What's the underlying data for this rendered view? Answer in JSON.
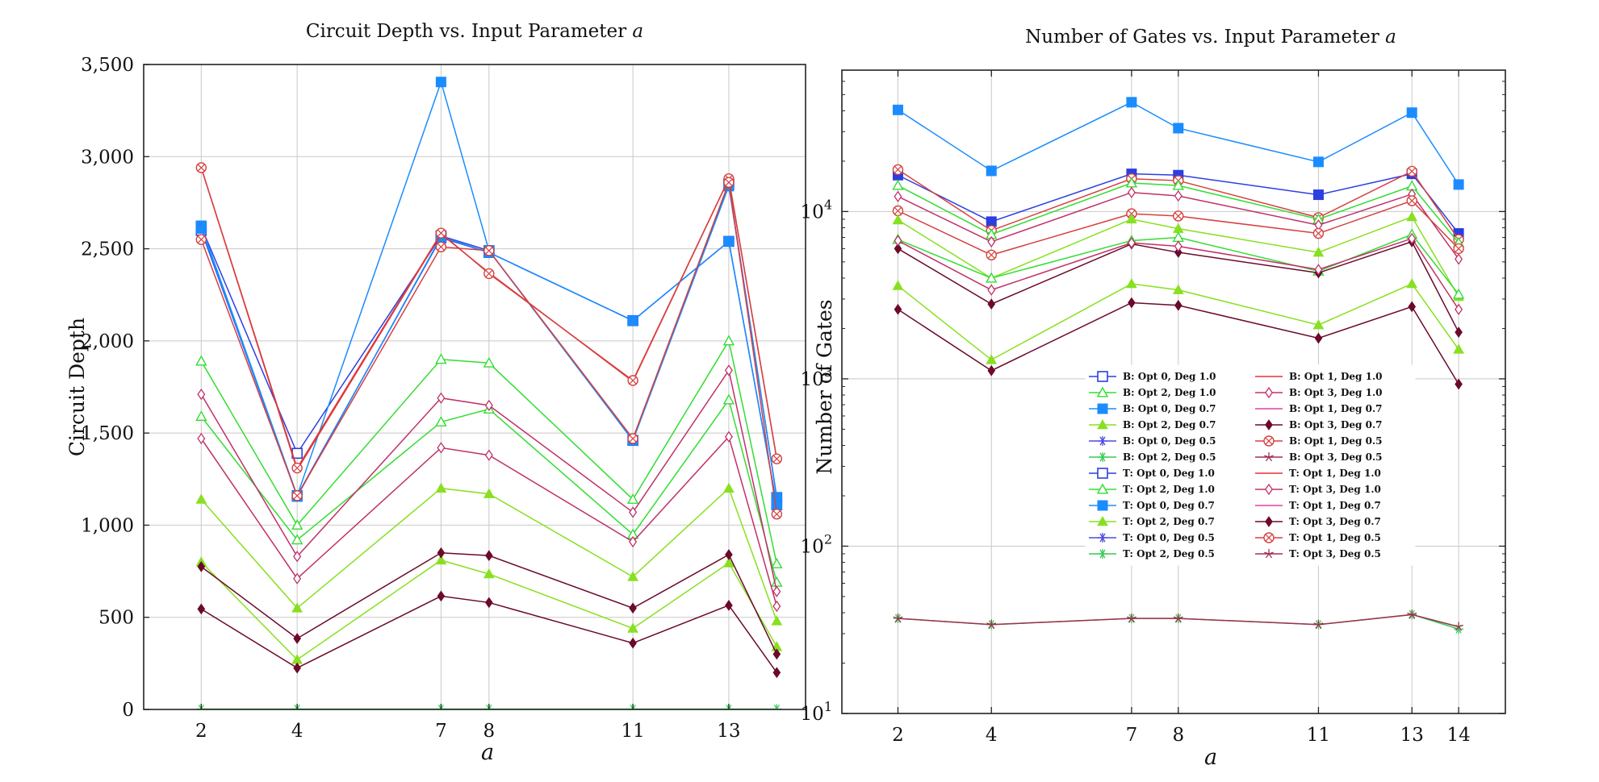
{
  "chart_data": [
    {
      "type": "line",
      "title": "Circuit Depth vs. Input Parameter a",
      "title_prefix": "Circuit Depth vs. Input Parameter ",
      "title_var": "a",
      "xlabel": "a",
      "ylabel": "Circuit Depth",
      "x": [
        2,
        4,
        7,
        8,
        11,
        13,
        14
      ],
      "xticks": [
        "2",
        "4",
        "7",
        "8",
        "11",
        "13"
      ],
      "yticks": [
        "0",
        "500",
        "1,000",
        "1,500",
        "2,000",
        "2,500",
        "3,000",
        "3,500"
      ],
      "xlim": [
        0.8,
        14.6
      ],
      "ylim": [
        0,
        3500
      ],
      "yscale": "linear",
      "grid": true,
      "series": [
        {
          "name": "B: Opt 0, Deg 1.0",
          "color": "#2b3fe0",
          "marker": "square-open",
          "values": [
            2620,
            1390,
            2570,
            2490,
            1460,
            2850,
            1150
          ]
        },
        {
          "name": "T: Opt 0, Deg 1.0",
          "color": "#2b3fe0",
          "marker": "square-open",
          "values": [
            2600,
            1160,
            2560,
            2480,
            2110,
            2540,
            1110
          ]
        },
        {
          "name": "B: Opt 0, Deg 0.7",
          "color": "#1a8cff",
          "marker": "square-filled",
          "values": [
            2625,
            1160,
            3405,
            2490,
            1460,
            2840,
            1150
          ]
        },
        {
          "name": "T: Opt 0, Deg 0.7",
          "color": "#1a8cff",
          "marker": "square-filled",
          "values": [
            2610,
            1155,
            2565,
            2480,
            2110,
            2540,
            1110
          ]
        },
        {
          "name": "B: Opt 1, Deg 1.0",
          "color": "#e63030",
          "marker": "none",
          "values": [
            2940,
            1300,
            2580,
            2370,
            1780,
            2880,
            1360
          ]
        },
        {
          "name": "B: Opt 1, Deg 0.5",
          "color": "#d64040",
          "marker": "circle-x",
          "values": [
            2940,
            1310,
            2585,
            2365,
            1785,
            2880,
            1360
          ]
        },
        {
          "name": "T: Opt 1, Deg 0.5",
          "color": "#d64040",
          "marker": "circle-x",
          "values": [
            2550,
            1160,
            2510,
            2490,
            1470,
            2860,
            1060
          ]
        },
        {
          "name": "T: Opt 2, Deg 1.0",
          "color": "#33dd33",
          "marker": "triangle-open",
          "values": [
            1890,
            1000,
            1900,
            1880,
            1140,
            2000,
            790
          ]
        },
        {
          "name": "B: Opt 2, Deg 1.0",
          "color": "#33dd33",
          "marker": "triangle-open",
          "values": [
            1590,
            920,
            1560,
            1630,
            950,
            1680,
            690
          ]
        },
        {
          "name": "B: Opt 3, Deg 1.0",
          "color": "#c0306a",
          "marker": "diamond-open",
          "values": [
            1710,
            830,
            1690,
            1650,
            1070,
            1840,
            640
          ]
        },
        {
          "name": "T: Opt 3, Deg 1.0",
          "color": "#c0306a",
          "marker": "diamond-open",
          "values": [
            1470,
            710,
            1420,
            1380,
            910,
            1480,
            560
          ]
        },
        {
          "name": "B: Opt 2, Deg 0.7",
          "color": "#88e020",
          "marker": "triangle-filled",
          "values": [
            1140,
            550,
            1200,
            1170,
            720,
            1200,
            480
          ]
        },
        {
          "name": "T: Opt 2, Deg 0.7",
          "color": "#88e020",
          "marker": "triangle-filled",
          "values": [
            800,
            270,
            810,
            735,
            440,
            795,
            340
          ]
        },
        {
          "name": "B: Opt 3, Deg 0.7",
          "color": "#6b0a2a",
          "marker": "diamond-filled",
          "values": [
            775,
            385,
            850,
            835,
            550,
            840,
            300
          ]
        },
        {
          "name": "T: Opt 3, Deg 0.7",
          "color": "#6b0a2a",
          "marker": "diamond-filled",
          "values": [
            545,
            225,
            615,
            580,
            360,
            565,
            200
          ]
        },
        {
          "name": "B: Opt 2, Deg 0.5",
          "color": "#33cc55",
          "marker": "asterisk",
          "values": [
            2,
            2,
            2,
            2,
            2,
            2,
            2
          ]
        }
      ]
    },
    {
      "type": "line",
      "title": "Number of Gates vs. Input Parameter a",
      "title_prefix": "Number of Gates vs. Input Parameter ",
      "title_var": "a",
      "xlabel": "a",
      "ylabel": "Number of Gates",
      "x": [
        2,
        4,
        7,
        8,
        11,
        13,
        14
      ],
      "xticks": [
        "2",
        "4",
        "7",
        "8",
        "11",
        "13",
        "14"
      ],
      "ylim": [
        10,
        70000
      ],
      "yscale": "log",
      "xlim": [
        0.8,
        15
      ],
      "grid": true,
      "legend_position": "center-lower",
      "legend": [
        {
          "label": "B: Opt 0, Deg 1.0",
          "color": "#2b3fe0",
          "marker": "square-open"
        },
        {
          "label": "B: Opt 1, Deg 1.0",
          "color": "#e63030",
          "marker": "none"
        },
        {
          "label": "B: Opt 2, Deg 1.0",
          "color": "#33dd33",
          "marker": "triangle-open"
        },
        {
          "label": "B: Opt 3, Deg 1.0",
          "color": "#c0306a",
          "marker": "diamond-open"
        },
        {
          "label": "B: Opt 0, Deg 0.7",
          "color": "#1a8cff",
          "marker": "square-filled"
        },
        {
          "label": "B: Opt 1, Deg 0.7",
          "color": "#e040a0",
          "marker": "none"
        },
        {
          "label": "B: Opt 2, Deg 0.7",
          "color": "#88e020",
          "marker": "triangle-filled"
        },
        {
          "label": "B: Opt 3, Deg 0.7",
          "color": "#6b0a2a",
          "marker": "diamond-filled"
        },
        {
          "label": "B: Opt 0, Deg 0.5",
          "color": "#4b4be0",
          "marker": "asterisk"
        },
        {
          "label": "B: Opt 1, Deg 0.5",
          "color": "#d64040",
          "marker": "circle-x"
        },
        {
          "label": "B: Opt 2, Deg 0.5",
          "color": "#33cc55",
          "marker": "asterisk"
        },
        {
          "label": "B: Opt 3, Deg 0.5",
          "color": "#a03050",
          "marker": "star"
        },
        {
          "label": "T: Opt 0, Deg 1.0",
          "color": "#2b3fe0",
          "marker": "square-open"
        },
        {
          "label": "T: Opt 1, Deg 1.0",
          "color": "#e63030",
          "marker": "none"
        },
        {
          "label": "T: Opt 2, Deg 1.0",
          "color": "#33dd33",
          "marker": "triangle-open"
        },
        {
          "label": "T: Opt 3, Deg 1.0",
          "color": "#c0306a",
          "marker": "diamond-open"
        },
        {
          "label": "T: Opt 0, Deg 0.7",
          "color": "#1a8cff",
          "marker": "square-filled"
        },
        {
          "label": "T: Opt 1, Deg 0.7",
          "color": "#e040a0",
          "marker": "none"
        },
        {
          "label": "T: Opt 2, Deg 0.7",
          "color": "#88e020",
          "marker": "triangle-filled"
        },
        {
          "label": "T: Opt 3, Deg 0.7",
          "color": "#6b0a2a",
          "marker": "diamond-filled"
        },
        {
          "label": "T: Opt 0, Deg 0.5",
          "color": "#4b4be0",
          "marker": "asterisk"
        },
        {
          "label": "T: Opt 1, Deg 0.5",
          "color": "#d64040",
          "marker": "circle-x"
        },
        {
          "label": "T: Opt 2, Deg 0.5",
          "color": "#33cc55",
          "marker": "asterisk"
        },
        {
          "label": "T: Opt 3, Deg 0.5",
          "color": "#a03050",
          "marker": "star"
        }
      ],
      "series": [
        {
          "name": "B: Opt 0, Deg 0.7",
          "color": "#1a8cff",
          "marker": "square-filled",
          "values": [
            40500,
            17500,
            45000,
            31500,
            19800,
            39000,
            14500
          ]
        },
        {
          "name": "T: Opt 0, Deg 1.0",
          "color": "#2b3fe0",
          "marker": "square-filled",
          "values": [
            16500,
            8700,
            16800,
            16500,
            12600,
            16800,
            7400
          ]
        },
        {
          "name": "B: Opt 1, Deg 1.0",
          "color": "#d64040",
          "marker": "circle-x",
          "values": [
            17800,
            7700,
            15700,
            15300,
            9200,
            17400,
            6800
          ]
        },
        {
          "name": "B: Opt 2, Deg 1.0",
          "color": "#33dd33",
          "marker": "triangle-open",
          "values": [
            14300,
            7300,
            14800,
            14300,
            9000,
            14200,
            6500
          ]
        },
        {
          "name": "B: Opt 3, Deg 1.0",
          "color": "#c0306a",
          "marker": "diamond-open",
          "values": [
            12300,
            6600,
            13000,
            12400,
            8300,
            12700,
            5200
          ]
        },
        {
          "name": "B: Opt 1, Deg 0.5",
          "color": "#d64040",
          "marker": "circle-x",
          "values": [
            10100,
            5500,
            9700,
            9400,
            7400,
            11600,
            6000
          ]
        },
        {
          "name": "B: Opt 2, Deg 0.7",
          "color": "#88e020",
          "marker": "triangle-filled",
          "values": [
            8900,
            4000,
            9000,
            7900,
            5700,
            9300,
            3100
          ]
        },
        {
          "name": "T: Opt 2, Deg 1.0",
          "color": "#33dd33",
          "marker": "triangle-open",
          "values": [
            6800,
            4000,
            6700,
            7000,
            4400,
            7300,
            3200
          ]
        },
        {
          "name": "B: Opt 3, Deg 0.7",
          "color": "#6b0a2a",
          "marker": "diamond-filled",
          "values": [
            6000,
            2800,
            6400,
            5700,
            4300,
            6600,
            1900
          ]
        },
        {
          "name": "T: Opt 3, Deg 1.0",
          "color": "#c0306a",
          "marker": "diamond-open",
          "values": [
            6700,
            3400,
            6500,
            6200,
            4500,
            6900,
            2600
          ]
        },
        {
          "name": "T: Opt 2, Deg 0.7",
          "color": "#88e020",
          "marker": "triangle-filled",
          "values": [
            3600,
            1300,
            3700,
            3400,
            2100,
            3700,
            1500
          ]
        },
        {
          "name": "T: Opt 3, Deg 0.7",
          "color": "#6b0a2a",
          "marker": "diamond-filled",
          "values": [
            2600,
            1120,
            2850,
            2750,
            1750,
            2700,
            930
          ]
        },
        {
          "name": "B: Opt 2, Deg 0.5",
          "color": "#33cc55",
          "marker": "asterisk",
          "values": [
            37,
            34,
            37,
            37,
            34,
            39,
            32
          ]
        },
        {
          "name": "B: Opt 3, Deg 0.5",
          "color": "#a03050",
          "marker": "star",
          "values": [
            37,
            34,
            37,
            37,
            34,
            39,
            33
          ]
        }
      ]
    }
  ]
}
